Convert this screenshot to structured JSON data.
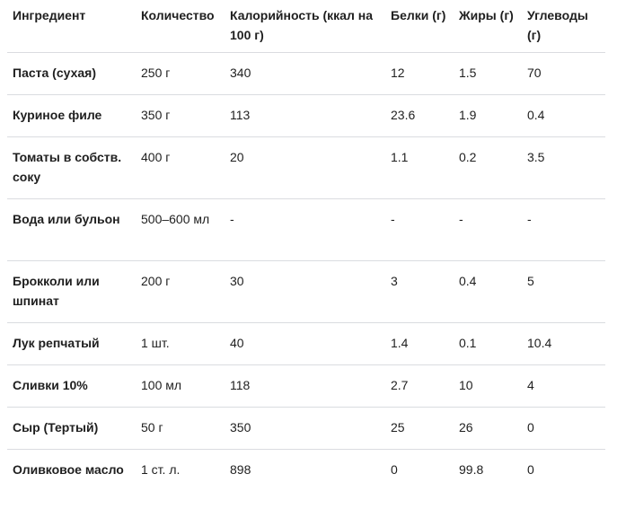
{
  "table": {
    "headers": [
      "Ингредиент",
      "Количество",
      "Калорийность (ккал на 100 г)",
      "Белки (г)",
      "Жиры (г)",
      "Углеводы (г)"
    ],
    "rows": [
      [
        "Паста (сухая)",
        "250 г",
        "340",
        "12",
        "1.5",
        "70"
      ],
      [
        "Куриное филе",
        "350 г",
        "113",
        "23.6",
        "1.9",
        "0.4"
      ],
      [
        "Томаты в собств. соку",
        "400 г",
        "20",
        "1.1",
        "0.2",
        "3.5"
      ],
      [
        "Вода или бульон",
        "500–600 мл",
        "-",
        "-",
        "-",
        "-"
      ],
      [
        "Брокколи или шпинат",
        "200 г",
        "30",
        "3",
        "0.4",
        "5"
      ],
      [
        "Лук репчатый",
        "1 шт.",
        "40",
        "1.4",
        "0.1",
        "10.4"
      ],
      [
        "Сливки 10%",
        "100 мл",
        "118",
        "2.7",
        "10",
        "4"
      ],
      [
        "Сыр (Тертый)",
        "50 г",
        "350",
        "25",
        "26",
        "0"
      ],
      [
        "Оливковое масло",
        "1 ст. л.",
        "898",
        "0",
        "99.8",
        "0"
      ]
    ]
  }
}
